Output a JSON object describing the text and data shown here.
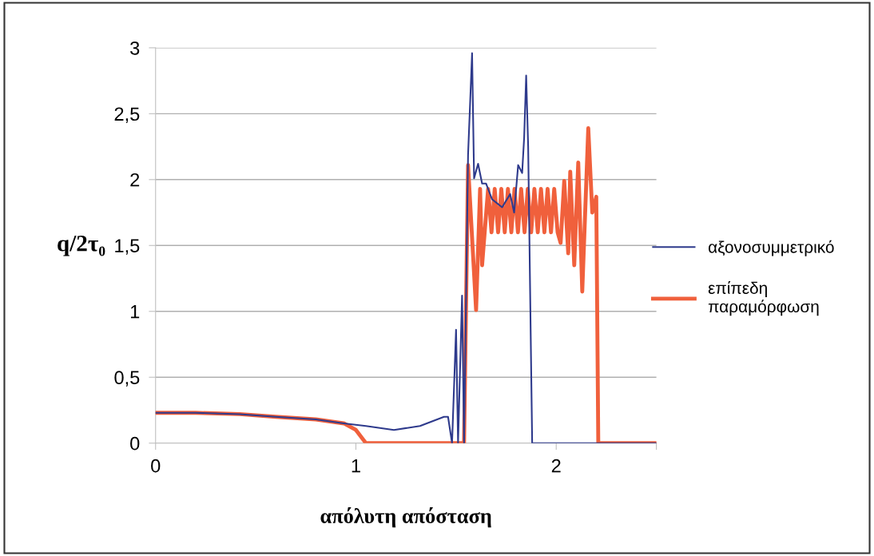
{
  "chart_data": {
    "type": "line",
    "xlabel": "απόλυτη απόσταση",
    "ylabel": "q/2τ₀",
    "xlim": [
      0,
      2.5
    ],
    "xticks": [
      0,
      1,
      2,
      {
        "value": 2.5,
        "label": null
      }
    ],
    "ylim": [
      0,
      3
    ],
    "yticks": [
      0,
      {
        "value": 0.5,
        "label": "0,5"
      },
      1,
      {
        "value": 1.5,
        "label": "1,5"
      },
      2,
      {
        "value": 2.5,
        "label": "2,5"
      },
      3
    ],
    "grid": "y",
    "legend": "right",
    "marker": "none",
    "line_style": "solid",
    "series": [
      {
        "name": "αξονοσυμμετρικό",
        "color": "#2e3a8c",
        "x": [
          0,
          0.2,
          0.42,
          0.6,
          0.8,
          0.94,
          1.05,
          1.19,
          1.32,
          1.44,
          1.46,
          1.48,
          1.5,
          1.51,
          1.53,
          1.54,
          1.56,
          1.58,
          1.59,
          1.61,
          1.63,
          1.65,
          1.68,
          1.73,
          1.77,
          1.79,
          1.81,
          1.83,
          1.84,
          1.85,
          1.86,
          1.88,
          2.5
        ],
        "values": [
          0.23,
          0.23,
          0.22,
          0.2,
          0.18,
          0.15,
          0.13,
          0.1,
          0.13,
          0.2,
          0.2,
          0,
          0.86,
          0,
          1.12,
          0,
          2.19,
          2.96,
          2.01,
          2.12,
          1.97,
          1.97,
          1.85,
          1.79,
          1.89,
          1.75,
          2.11,
          2.05,
          2.32,
          2.79,
          2.25,
          0,
          0
        ]
      },
      {
        "name": "επίπεδη παραμόρφωση",
        "color": "#f0603c",
        "x": [
          0,
          0.2,
          0.42,
          0.6,
          0.8,
          0.94,
          1.0,
          1.05,
          1.54,
          1.56,
          1.6,
          1.62,
          1.63,
          1.66,
          1.677,
          1.693,
          1.71,
          1.726,
          1.743,
          1.759,
          1.776,
          1.792,
          1.809,
          1.825,
          1.842,
          1.858,
          1.875,
          1.891,
          1.908,
          1.924,
          1.941,
          1.957,
          1.974,
          1.99,
          2.007,
          2.022,
          2.04,
          2.06,
          2.07,
          2.09,
          2.11,
          2.13,
          2.16,
          2.18,
          2.2,
          2.21,
          2.5
        ],
        "values": [
          0.23,
          0.23,
          0.22,
          0.2,
          0.18,
          0.15,
          0.1,
          0,
          0,
          2.11,
          1.01,
          1.93,
          1.35,
          1.93,
          1.6,
          1.93,
          1.6,
          1.93,
          1.6,
          1.93,
          1.6,
          1.93,
          1.6,
          1.93,
          1.6,
          1.93,
          1.6,
          1.93,
          1.6,
          1.93,
          1.6,
          1.93,
          1.6,
          1.93,
          1.6,
          1.52,
          1.99,
          1.44,
          2.06,
          1.35,
          2.13,
          1.15,
          2.39,
          1.75,
          1.87,
          0,
          0
        ]
      }
    ]
  }
}
